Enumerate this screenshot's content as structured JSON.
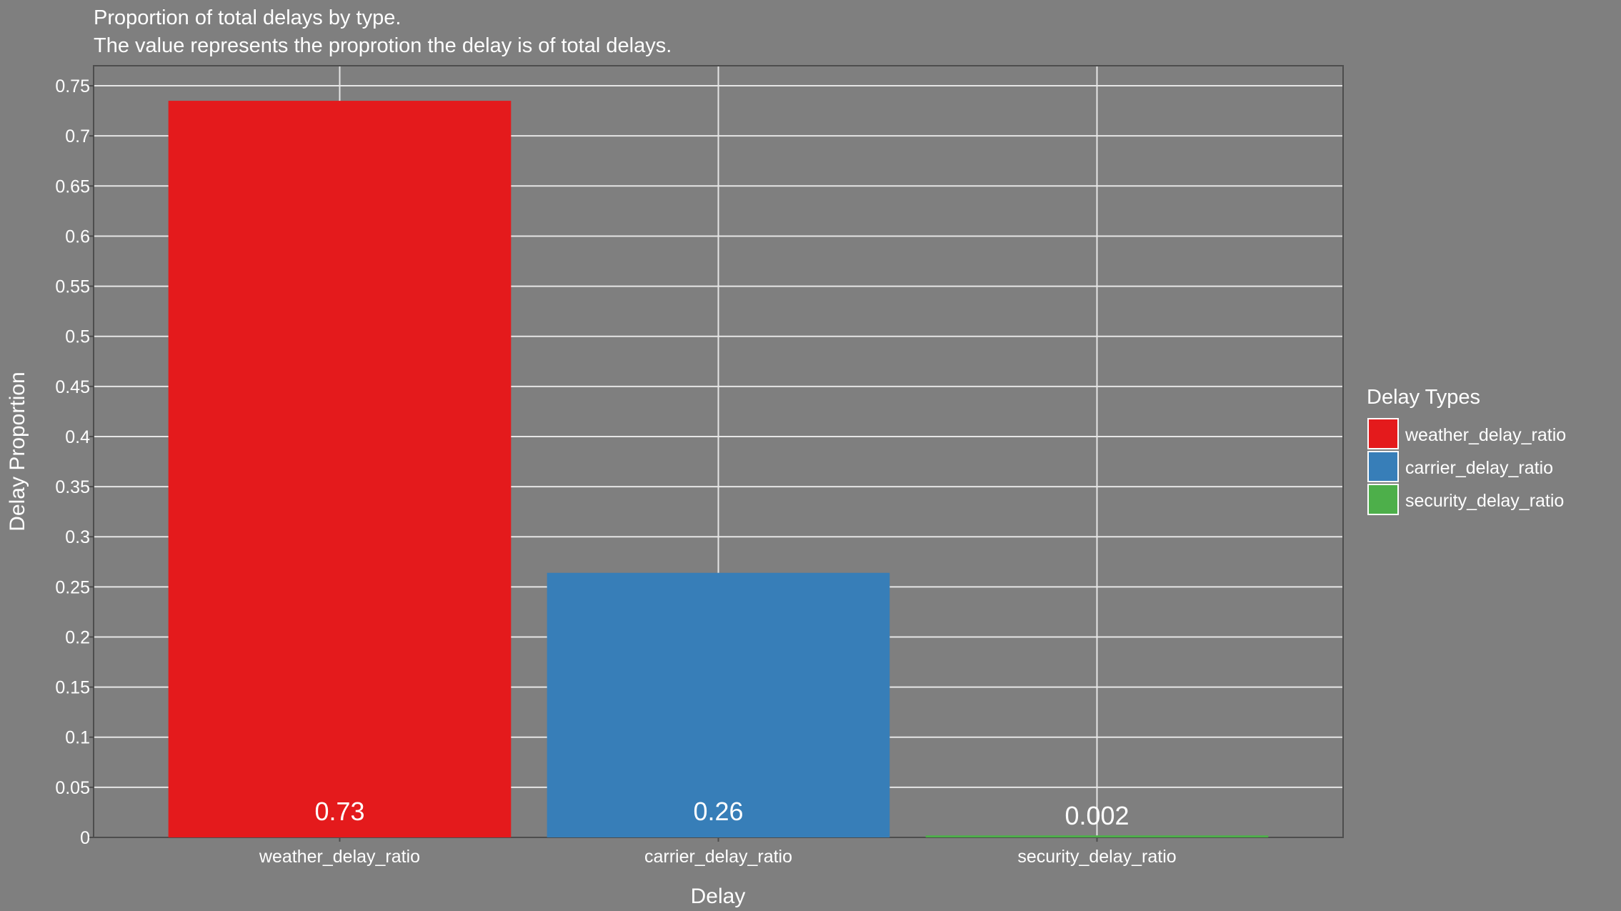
{
  "chart_data": {
    "type": "bar",
    "title": "Proportion of total delays by type.",
    "subtitle": "The value represents the proprotion the delay is of total delays.",
    "xlabel": "Delay",
    "ylabel": "Delay Proportion",
    "categories": [
      "weather_delay_ratio",
      "carrier_delay_ratio",
      "security_delay_ratio"
    ],
    "values": [
      0.735,
      0.264,
      0.002
    ],
    "data_labels": [
      "0.73",
      "0.26",
      "0.002"
    ],
    "colors": [
      "#e41a1c",
      "#377eb8",
      "#4daf4a"
    ],
    "ylim": [
      0,
      0.77
    ],
    "yticks": [
      0,
      0.05,
      0.1,
      0.15,
      0.2,
      0.25,
      0.3,
      0.35,
      0.4,
      0.45,
      0.5,
      0.55,
      0.6,
      0.65,
      0.7,
      0.75
    ],
    "ytick_labels": [
      "0",
      "0.05",
      "0.1",
      "0.15",
      "0.2",
      "0.25",
      "0.3",
      "0.35",
      "0.4",
      "0.45",
      "0.5",
      "0.55",
      "0.6",
      "0.65",
      "0.7",
      "0.75"
    ],
    "grid": true,
    "legend": {
      "title": "Delay Types",
      "position": "right",
      "entries": [
        "weather_delay_ratio",
        "carrier_delay_ratio",
        "security_delay_ratio"
      ]
    },
    "colors_style": {
      "background": "#7f7f7f",
      "grid": "#e6e6e6",
      "frame": "#4d4d4d"
    }
  }
}
